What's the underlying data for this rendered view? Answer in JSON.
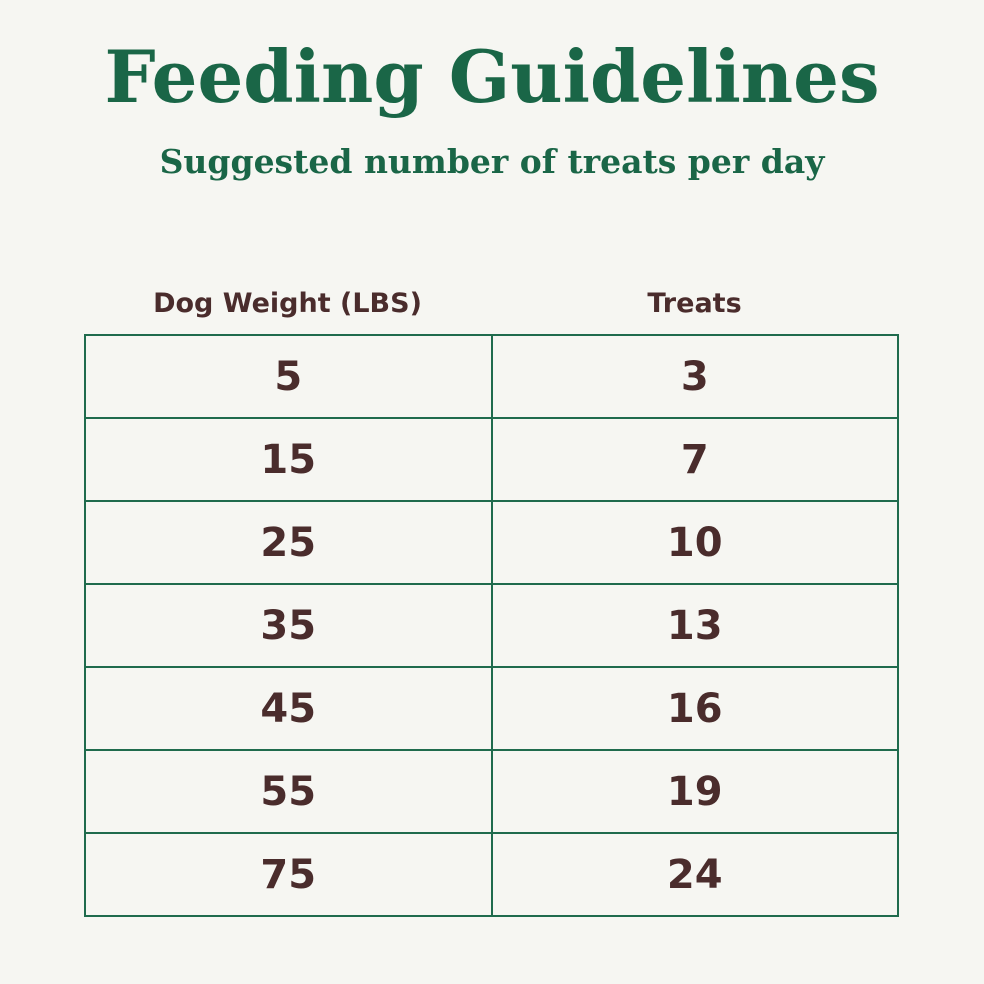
{
  "title": "Feeding Guidelines",
  "subtitle": "Suggested number of treats per day",
  "colors": {
    "background": "#f6f6f2",
    "title_green": "#1a6647",
    "table_border": "#1f6b4d",
    "text_brown": "#4a2c2c"
  },
  "table": {
    "headers": [
      "Dog Weight (LBS)",
      "Treats"
    ],
    "rows": [
      [
        "5",
        "3"
      ],
      [
        "15",
        "7"
      ],
      [
        "25",
        "10"
      ],
      [
        "35",
        "13"
      ],
      [
        "45",
        "16"
      ],
      [
        "55",
        "19"
      ],
      [
        "75",
        "24"
      ]
    ]
  }
}
